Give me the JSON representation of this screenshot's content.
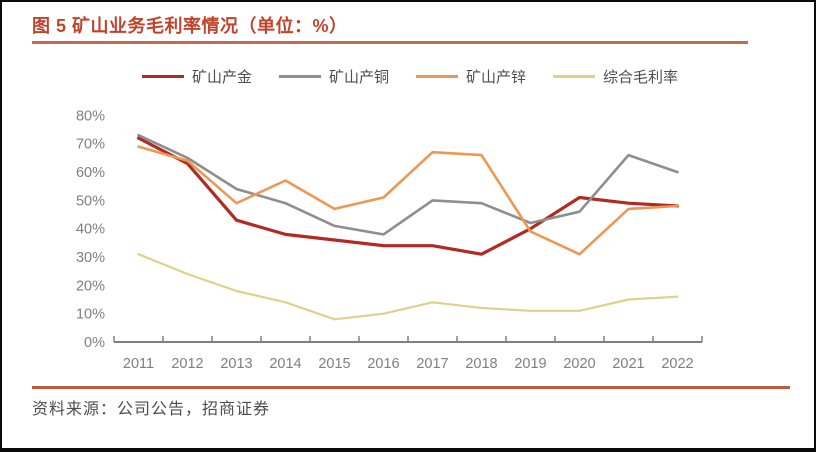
{
  "header": {
    "title": "图 5 矿山业务毛利率情况（单位：%）",
    "title_color": "#c0442c",
    "rule_color": "#c3694e"
  },
  "footer": {
    "source": "资料来源：公司公告，招商证券",
    "rule_color": "#bb5a3f",
    "text_color": "#4d4d4d"
  },
  "chart_data": {
    "type": "line",
    "title": "图 5 矿山业务毛利率情况（单位：%）",
    "categories": [
      "2011",
      "2012",
      "2013",
      "2014",
      "2015",
      "2016",
      "2017",
      "2018",
      "2019",
      "2020",
      "2021",
      "2022"
    ],
    "series": [
      {
        "name": "矿山产金",
        "color": "#b22a22",
        "values": [
          72,
          63,
          43,
          38,
          36,
          34,
          34,
          31,
          40,
          51,
          49,
          48
        ]
      },
      {
        "name": "矿山产铜",
        "color": "#8e8e8e",
        "values": [
          73,
          65,
          54,
          49,
          41,
          38,
          50,
          49,
          42,
          46,
          66,
          60
        ]
      },
      {
        "name": "矿山产锌",
        "color": "#ec9853",
        "values": [
          69,
          64,
          49,
          57,
          47,
          51,
          67,
          66,
          39,
          31,
          47,
          48
        ]
      },
      {
        "name": "综合毛利率",
        "color": "#ddd28a",
        "values": [
          31,
          24,
          18,
          14,
          8,
          10,
          14,
          12,
          11,
          11,
          15,
          16
        ]
      }
    ],
    "ylim": [
      0,
      80
    ],
    "ytick_step": 10,
    "ytick_suffix": "%",
    "grid": false,
    "legend_position": "top",
    "axis_color": "#808080",
    "label_color": "#7f7f7f"
  }
}
